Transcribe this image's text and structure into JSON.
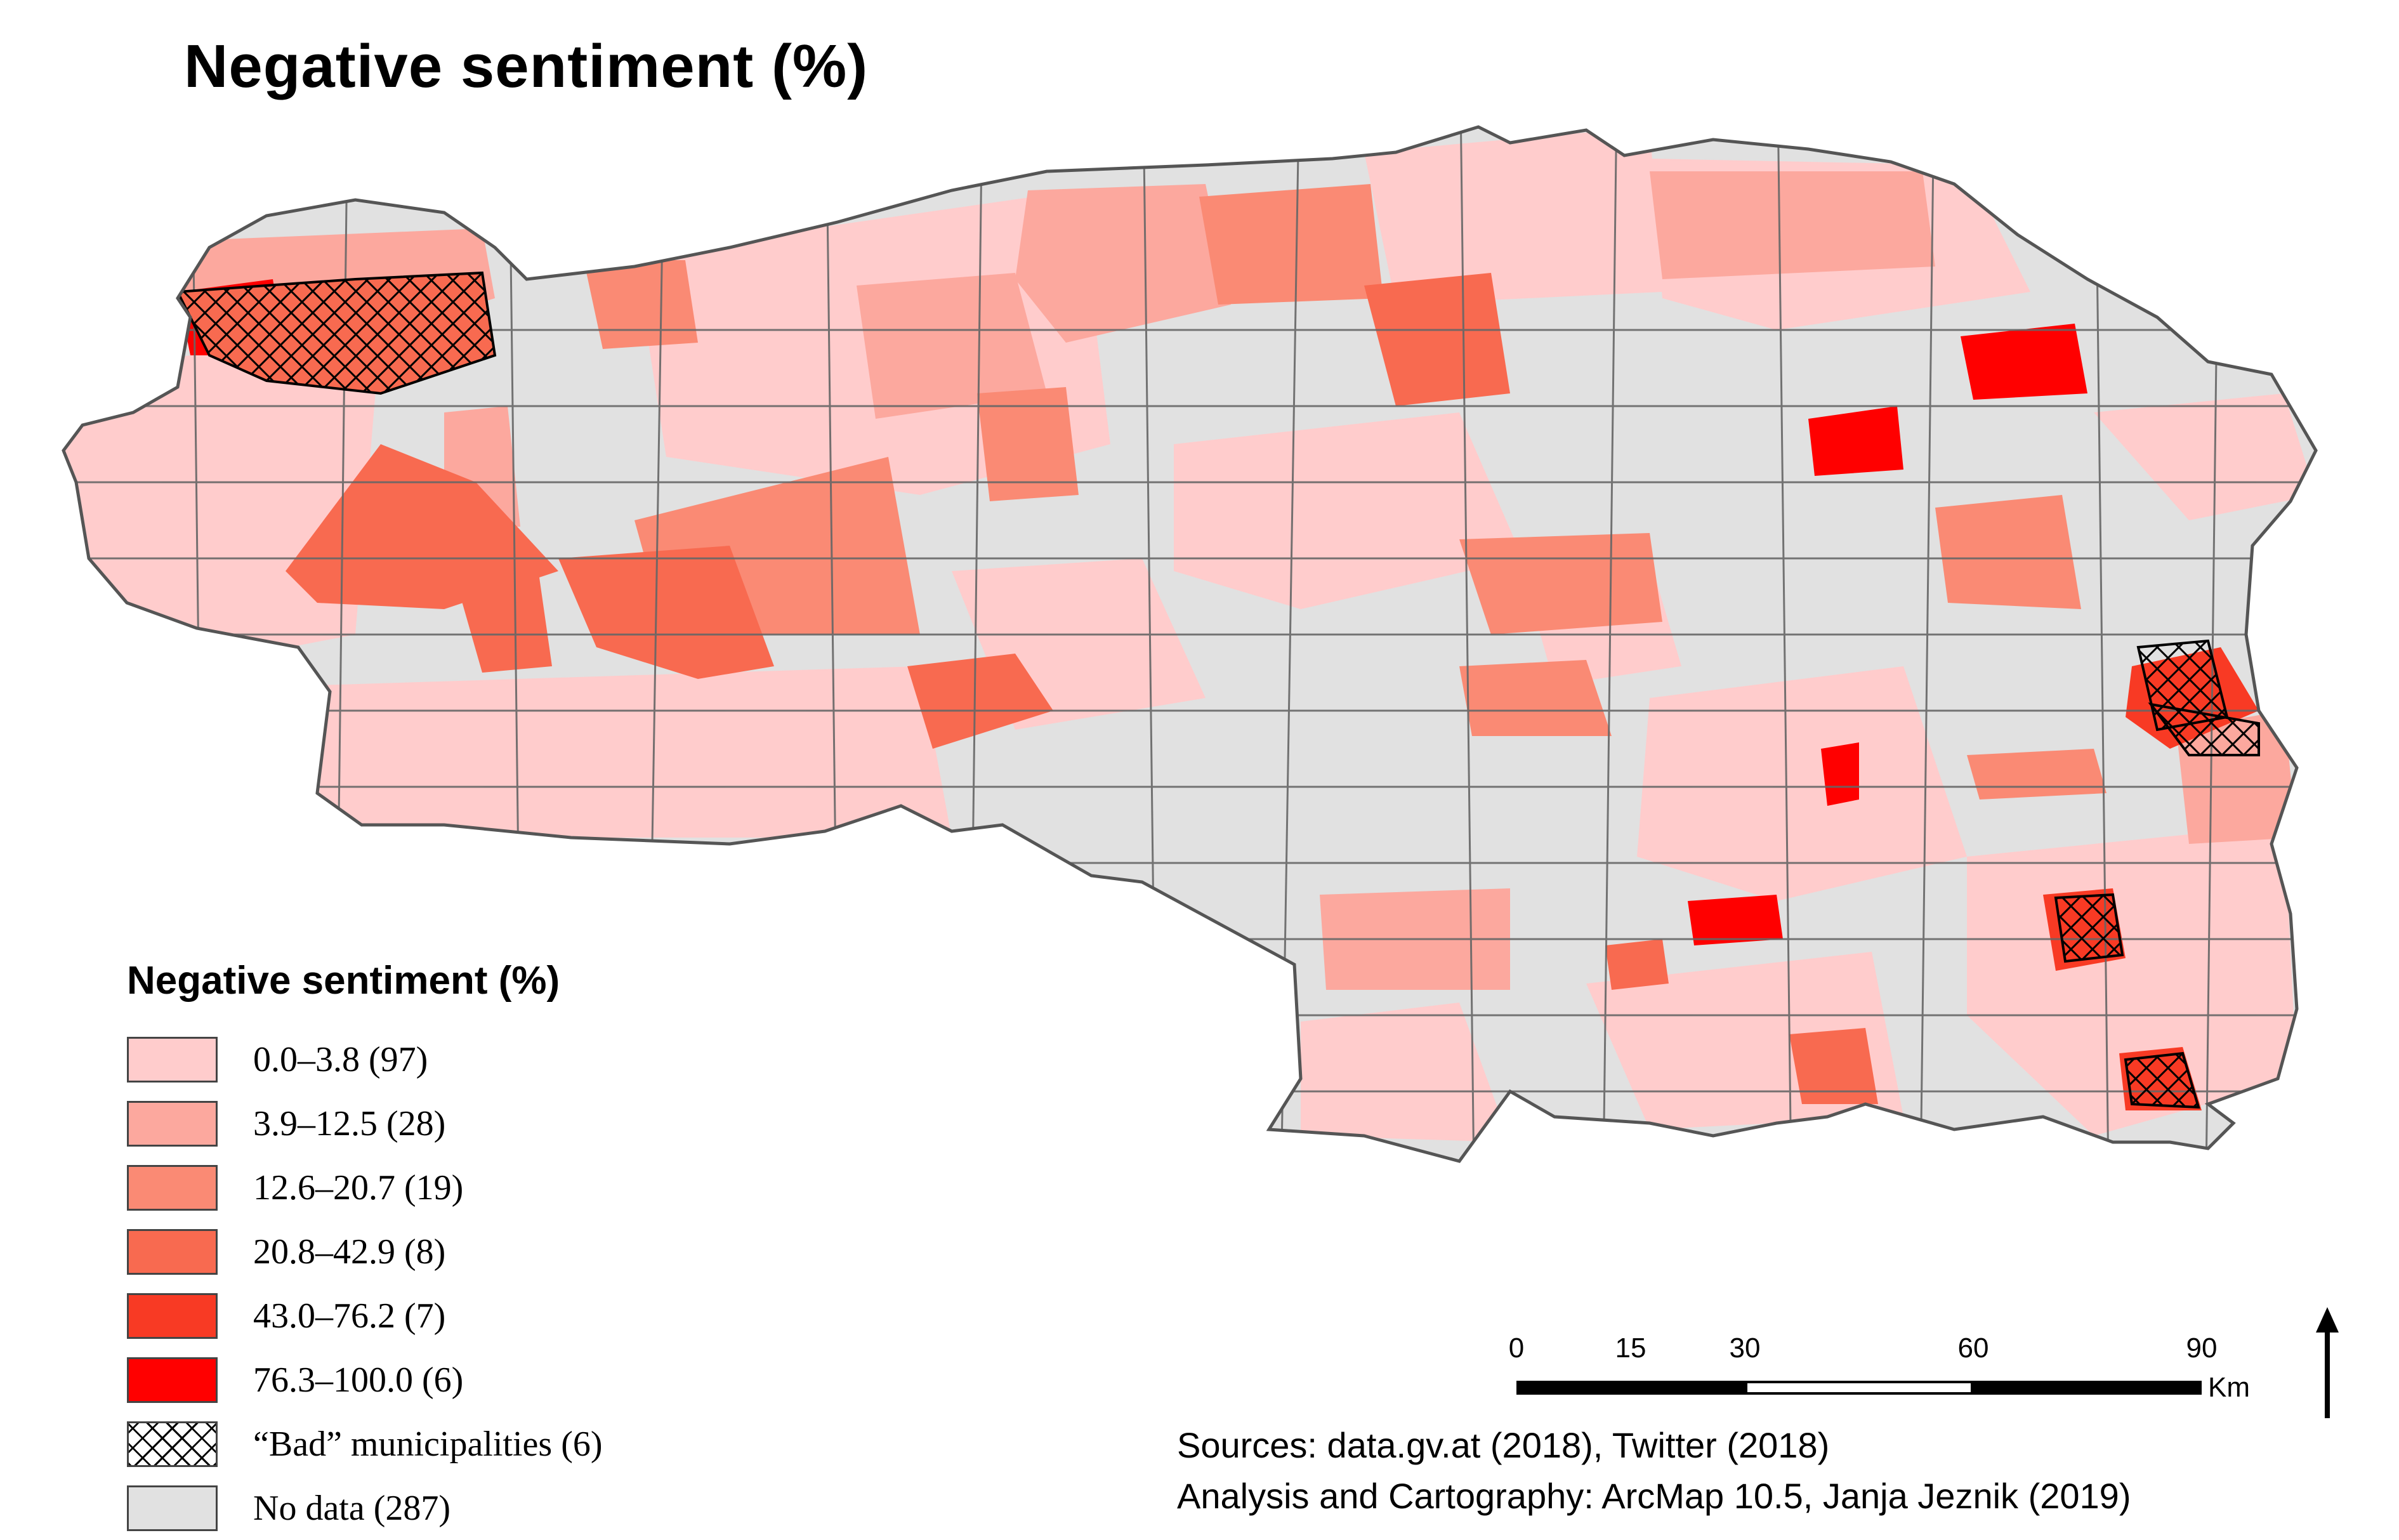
{
  "title": "Negative sentiment (%)",
  "legend": {
    "title": "Negative sentiment (%)",
    "items": [
      {
        "label": "0.0–3.8 (97)",
        "color": "#ffcccc"
      },
      {
        "label": "3.9–12.5 (28)",
        "color": "#fca89e"
      },
      {
        "label": "12.6–20.7 (19)",
        "color": "#fa8a74"
      },
      {
        "label": "20.8–42.9 (8)",
        "color": "#f86a50"
      },
      {
        "label": "43.0–76.2 (7)",
        "color": "#f83a24"
      },
      {
        "label": "76.3–100.0 (6)",
        "color": "#ff0000"
      },
      {
        "label": "“Bad” municipalities (6)",
        "color": "hatch"
      },
      {
        "label": "No data (287)",
        "color": "#e1e1e1"
      }
    ]
  },
  "scale": {
    "ticks": [
      "0",
      "15",
      "30",
      "60",
      "90"
    ],
    "unit": "Km"
  },
  "sources": {
    "line1": "Sources: data.gv.at (2018), Twitter (2018)",
    "line2": "Analysis and Cartography: ArcMap 10.5,  Janja Jeznik (2019)"
  }
}
